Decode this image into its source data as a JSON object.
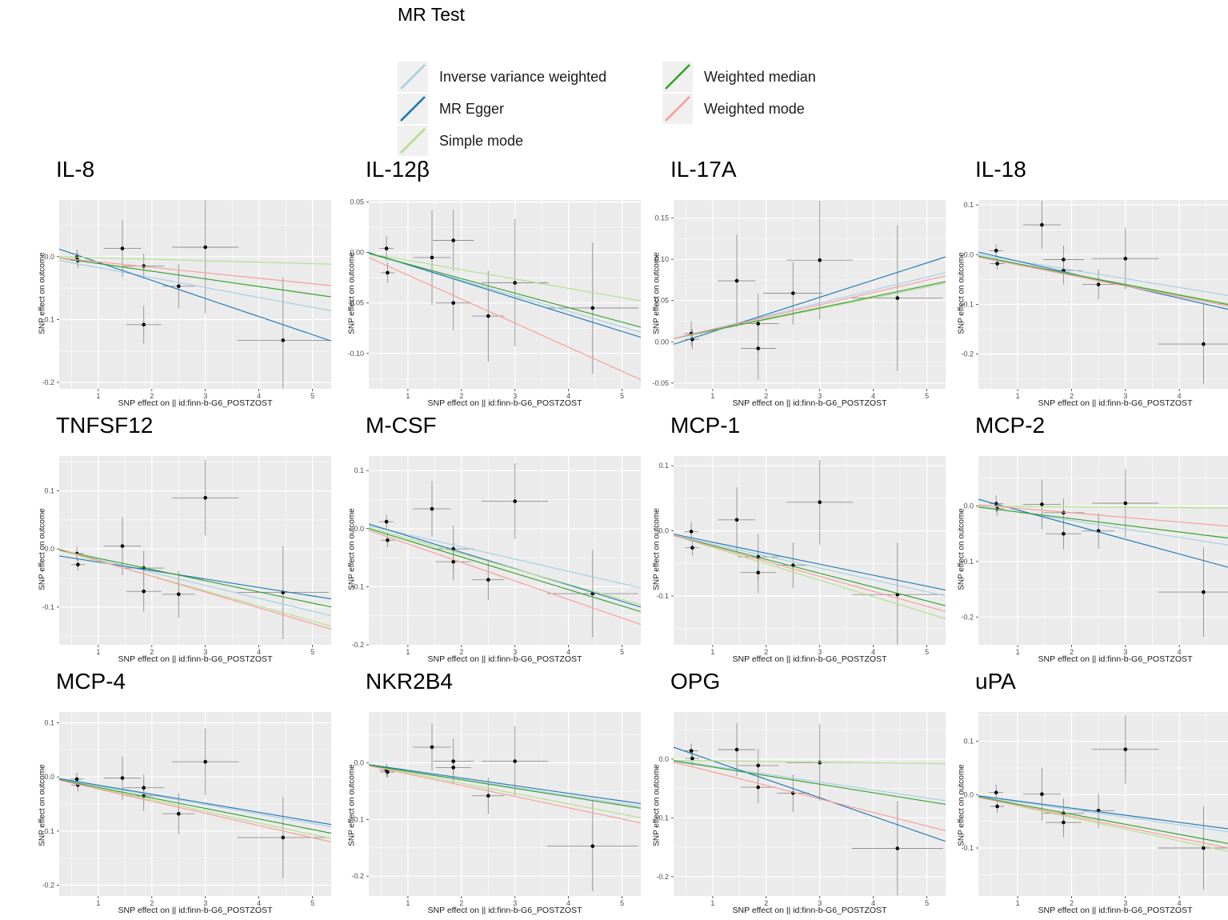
{
  "legend": {
    "title": "MR Test",
    "items": [
      {
        "label": "Inverse variance weighted",
        "color": "#A6CEE3",
        "col": 0,
        "row": 0
      },
      {
        "label": "MR Egger",
        "color": "#1F78B4",
        "col": 0,
        "row": 1
      },
      {
        "label": "Simple mode",
        "color": "#B2DF8A",
        "col": 0,
        "row": 2
      },
      {
        "label": "Weighted median",
        "color": "#33A02C",
        "col": 1,
        "row": 0
      },
      {
        "label": "Weighted mode",
        "color": "#FB9A99",
        "col": 1,
        "row": 1
      }
    ]
  },
  "methods": [
    {
      "id": "ivw",
      "label": "Inverse variance weighted",
      "color": "#A6CEE3"
    },
    {
      "id": "egger",
      "label": "MR Egger",
      "color": "#1F78B4"
    },
    {
      "id": "simple",
      "label": "Simple mode",
      "color": "#B2DF8A"
    },
    {
      "id": "median",
      "label": "Weighted median",
      "color": "#33A02C"
    },
    {
      "id": "mode",
      "label": "Weighted mode",
      "color": "#FB9A99"
    }
  ],
  "style": {
    "panel_bg": "#EBEBEB",
    "grid_major": "#FFFFFF",
    "grid_minor": "#F6F6F6",
    "point_color": "#000000",
    "errorbar_color": "#8F8F8F"
  },
  "axes": {
    "xlabel": "SNP effect on || id:finn-b-G6_POSTZOST",
    "ylabel": "SNP effect on outcome",
    "xticks": [
      1,
      2,
      3,
      4,
      5
    ],
    "xlim": [
      0.27,
      5.35
    ]
  },
  "chart_data": [
    {
      "type": "scatter",
      "title": "IL-8",
      "ylim": [
        -0.21,
        0.09
      ],
      "yticks": [
        [
          0.0,
          "0.0"
        ],
        [
          -0.1,
          "-0.1"
        ],
        [
          -0.2,
          "-0.2"
        ]
      ],
      "points": [
        [
          0.6,
          -0.001,
          0.13,
          0.012
        ],
        [
          0.62,
          -0.006,
          0.13,
          0.012
        ],
        [
          1.45,
          0.013,
          0.35,
          0.045
        ],
        [
          1.85,
          -0.015,
          0.38,
          0.02
        ],
        [
          1.85,
          -0.108,
          0.33,
          0.03
        ],
        [
          2.5,
          -0.047,
          0.3,
          0.035
        ],
        [
          3.0,
          0.015,
          0.62,
          0.105
        ],
        [
          4.45,
          -0.133,
          0.85,
          0.1
        ]
      ],
      "lines": {
        "ivw": [
          -0.006,
          -0.086
        ],
        "egger": [
          0.012,
          -0.134
        ],
        "simple": [
          0.0,
          -0.012
        ],
        "median": [
          -0.002,
          -0.064
        ],
        "mode": [
          -0.002,
          -0.046
        ]
      }
    },
    {
      "type": "scatter",
      "title": "IL-12β",
      "ylim": [
        -0.135,
        0.052
      ],
      "yticks": [
        [
          0.05,
          "0.05"
        ],
        [
          0.0,
          "0.00"
        ],
        [
          -0.05,
          "-0.05"
        ],
        [
          -0.1,
          "-0.10"
        ]
      ],
      "points": [
        [
          0.6,
          0.004,
          0.13,
          0.012
        ],
        [
          0.62,
          -0.02,
          0.13,
          0.01
        ],
        [
          1.45,
          -0.005,
          0.35,
          0.047
        ],
        [
          1.85,
          0.012,
          0.38,
          0.03
        ],
        [
          1.85,
          -0.05,
          0.33,
          0.027
        ],
        [
          2.5,
          -0.063,
          0.3,
          0.045
        ],
        [
          3.0,
          -0.03,
          0.62,
          0.063
        ],
        [
          4.45,
          -0.055,
          0.85,
          0.065
        ]
      ],
      "lines": {
        "ivw": [
          -0.001,
          -0.079
        ],
        "egger": [
          0.0,
          -0.084
        ],
        "simple": [
          -0.001,
          -0.048
        ],
        "median": [
          -0.001,
          -0.074
        ],
        "mode": [
          -0.005,
          -0.126
        ]
      }
    },
    {
      "type": "scatter",
      "title": "IL-17A",
      "ylim": [
        -0.057,
        0.172
      ],
      "yticks": [
        [
          0.15,
          "0.15"
        ],
        [
          0.1,
          "0.10"
        ],
        [
          0.05,
          "0.05"
        ],
        [
          0.0,
          "0.00"
        ],
        [
          -0.05,
          "-0.05"
        ]
      ],
      "points": [
        [
          0.6,
          0.01,
          0.13,
          0.015
        ],
        [
          0.62,
          0.003,
          0.13,
          0.012
        ],
        [
          1.45,
          0.074,
          0.35,
          0.056
        ],
        [
          1.85,
          0.022,
          0.38,
          0.036
        ],
        [
          1.85,
          -0.008,
          0.33,
          0.038
        ],
        [
          2.5,
          0.059,
          0.55,
          0.038
        ],
        [
          3.0,
          0.099,
          0.62,
          0.072
        ],
        [
          4.45,
          0.053,
          0.85,
          0.088
        ]
      ],
      "lines": {
        "ivw": [
          0.004,
          0.084
        ],
        "egger": [
          -0.003,
          0.103
        ],
        "simple": [
          0.004,
          0.071
        ],
        "median": [
          0.004,
          0.073
        ],
        "mode": [
          0.004,
          0.08
        ]
      }
    },
    {
      "type": "scatter",
      "title": "IL-18",
      "ylim": [
        -0.27,
        0.11
      ],
      "yticks": [
        [
          0.1,
          "0.1"
        ],
        [
          0.0,
          "0.0"
        ],
        [
          -0.1,
          "-0.1"
        ],
        [
          -0.2,
          "-0.2"
        ]
      ],
      "points": [
        [
          0.6,
          0.008,
          0.13,
          0.013
        ],
        [
          0.62,
          -0.018,
          0.13,
          0.012
        ],
        [
          1.45,
          0.06,
          0.35,
          0.048
        ],
        [
          1.85,
          -0.01,
          0.38,
          0.028
        ],
        [
          1.85,
          -0.032,
          0.33,
          0.028
        ],
        [
          2.5,
          -0.06,
          0.3,
          0.03
        ],
        [
          3.0,
          -0.008,
          0.62,
          0.062
        ],
        [
          4.45,
          -0.18,
          0.85,
          0.08
        ]
      ],
      "lines": {
        "ivw": [
          0.0,
          -0.09
        ],
        "egger": [
          0.005,
          -0.121
        ],
        "simple": [
          -0.003,
          -0.108
        ],
        "median": [
          -0.003,
          -0.11
        ],
        "mode": [
          -0.005,
          -0.113
        ]
      }
    },
    {
      "type": "scatter",
      "title": "TNFSF12",
      "ylim": [
        -0.165,
        0.16
      ],
      "yticks": [
        [
          0.1,
          "0.1"
        ],
        [
          0.0,
          "0.0"
        ],
        [
          -0.1,
          "-0.1"
        ]
      ],
      "points": [
        [
          0.6,
          -0.008,
          0.13,
          0.012
        ],
        [
          0.62,
          -0.027,
          0.13,
          0.01
        ],
        [
          1.45,
          0.005,
          0.35,
          0.05
        ],
        [
          1.85,
          -0.033,
          0.38,
          0.03
        ],
        [
          1.85,
          -0.073,
          0.33,
          0.035
        ],
        [
          2.5,
          -0.078,
          0.3,
          0.04
        ],
        [
          3.0,
          0.088,
          0.62,
          0.065
        ],
        [
          4.45,
          -0.075,
          0.85,
          0.08
        ]
      ],
      "lines": {
        "ivw": [
          -0.002,
          -0.115
        ],
        "egger": [
          -0.012,
          -0.086
        ],
        "simple": [
          -0.002,
          -0.133
        ],
        "median": [
          -0.002,
          -0.1
        ],
        "mode": [
          0.0,
          -0.138
        ]
      }
    },
    {
      "type": "scatter",
      "title": "M-CSF",
      "ylim": [
        -0.2,
        0.125
      ],
      "yticks": [
        [
          0.1,
          "0.1"
        ],
        [
          0.0,
          "0.0"
        ],
        [
          -0.1,
          "-0.1"
        ],
        [
          -0.2,
          "-0.2"
        ]
      ],
      "points": [
        [
          0.6,
          0.012,
          0.13,
          0.012
        ],
        [
          0.62,
          -0.02,
          0.13,
          0.012
        ],
        [
          1.45,
          0.034,
          0.35,
          0.048
        ],
        [
          1.85,
          -0.035,
          0.38,
          0.04
        ],
        [
          1.85,
          -0.057,
          0.33,
          0.032
        ],
        [
          2.5,
          -0.088,
          0.3,
          0.035
        ],
        [
          3.0,
          0.047,
          0.62,
          0.065
        ],
        [
          4.45,
          -0.112,
          0.85,
          0.075
        ]
      ],
      "lines": {
        "ivw": [
          0.005,
          -0.102
        ],
        "egger": [
          0.008,
          -0.135
        ],
        "simple": [
          0.002,
          -0.131
        ],
        "median": [
          0.0,
          -0.143
        ],
        "mode": [
          -0.003,
          -0.165
        ]
      }
    },
    {
      "type": "scatter",
      "title": "MCP-1",
      "ylim": [
        -0.175,
        0.115
      ],
      "yticks": [
        [
          0.1,
          "0.1"
        ],
        [
          0.0,
          "0.0"
        ],
        [
          -0.1,
          "-0.1"
        ]
      ],
      "points": [
        [
          0.6,
          -0.001,
          0.13,
          0.015
        ],
        [
          0.62,
          -0.026,
          0.13,
          0.012
        ],
        [
          1.45,
          0.017,
          0.35,
          0.05
        ],
        [
          1.85,
          -0.04,
          0.38,
          0.035
        ],
        [
          1.85,
          -0.064,
          0.33,
          0.032
        ],
        [
          2.5,
          -0.053,
          0.3,
          0.035
        ],
        [
          3.0,
          0.044,
          0.62,
          0.065
        ],
        [
          4.45,
          -0.098,
          0.85,
          0.08
        ]
      ],
      "lines": {
        "ivw": [
          -0.007,
          -0.1
        ],
        "egger": [
          -0.005,
          -0.091
        ],
        "simple": [
          -0.007,
          -0.135
        ],
        "median": [
          -0.007,
          -0.115
        ],
        "mode": [
          -0.007,
          -0.124
        ]
      }
    },
    {
      "type": "scatter",
      "title": "MCP-2",
      "ylim": [
        -0.25,
        0.09
      ],
      "yticks": [
        [
          0.0,
          "0.0"
        ],
        [
          -0.1,
          "-0.1"
        ],
        [
          -0.2,
          "-0.2"
        ]
      ],
      "points": [
        [
          0.6,
          0.004,
          0.13,
          0.015
        ],
        [
          0.62,
          -0.005,
          0.13,
          0.012
        ],
        [
          1.45,
          0.003,
          0.35,
          0.045
        ],
        [
          1.85,
          -0.012,
          0.38,
          0.025
        ],
        [
          1.85,
          -0.05,
          0.33,
          0.028
        ],
        [
          2.5,
          -0.045,
          0.3,
          0.032
        ],
        [
          3.0,
          0.005,
          0.62,
          0.062
        ],
        [
          4.45,
          -0.155,
          0.85,
          0.08
        ]
      ],
      "lines": {
        "ivw": [
          0.0,
          -0.077
        ],
        "egger": [
          0.012,
          -0.122
        ],
        "simple": [
          0.0,
          -0.004
        ],
        "median": [
          -0.002,
          -0.063
        ],
        "mode": [
          0.002,
          -0.04
        ]
      }
    },
    {
      "type": "scatter",
      "title": "MCP-4",
      "ylim": [
        -0.22,
        0.12
      ],
      "yticks": [
        [
          0.1,
          "0.1"
        ],
        [
          0.0,
          "0.0"
        ],
        [
          -0.1,
          "-0.1"
        ],
        [
          -0.2,
          "-0.2"
        ]
      ],
      "points": [
        [
          0.6,
          -0.004,
          0.13,
          0.012
        ],
        [
          0.62,
          -0.015,
          0.13,
          0.012
        ],
        [
          1.45,
          -0.002,
          0.35,
          0.04
        ],
        [
          1.85,
          -0.02,
          0.38,
          0.025
        ],
        [
          1.85,
          -0.035,
          0.33,
          0.028
        ],
        [
          2.5,
          -0.068,
          0.3,
          0.038
        ],
        [
          3.0,
          0.028,
          0.62,
          0.062
        ],
        [
          4.45,
          -0.112,
          0.85,
          0.075
        ]
      ],
      "lines": {
        "ivw": [
          -0.004,
          -0.092
        ],
        "egger": [
          -0.003,
          -0.088
        ],
        "simple": [
          -0.005,
          -0.114
        ],
        "median": [
          -0.005,
          -0.104
        ],
        "mode": [
          -0.006,
          -0.12
        ]
      }
    },
    {
      "type": "scatter",
      "title": "NKR2B4",
      "ylim": [
        -0.235,
        0.09
      ],
      "yticks": [
        [
          0.0,
          "0.0"
        ],
        [
          -0.1,
          "-0.1"
        ],
        [
          -0.2,
          "-0.2"
        ]
      ],
      "points": [
        [
          0.6,
          -0.013,
          0.13,
          0.012
        ],
        [
          0.62,
          -0.016,
          0.13,
          0.01
        ],
        [
          1.45,
          0.028,
          0.35,
          0.042
        ],
        [
          1.85,
          0.003,
          0.38,
          0.04
        ],
        [
          1.85,
          -0.008,
          0.33,
          0.012
        ],
        [
          2.5,
          -0.058,
          0.3,
          0.032
        ],
        [
          3.0,
          0.003,
          0.62,
          0.062
        ],
        [
          4.45,
          -0.147,
          0.85,
          0.08
        ]
      ],
      "lines": {
        "ivw": [
          -0.004,
          -0.077
        ],
        "egger": [
          -0.003,
          -0.072
        ],
        "simple": [
          -0.004,
          -0.097
        ],
        "median": [
          -0.004,
          -0.08
        ],
        "mode": [
          -0.005,
          -0.106
        ]
      }
    },
    {
      "type": "scatter",
      "title": "OPG",
      "ylim": [
        -0.233,
        0.08
      ],
      "yticks": [
        [
          0.0,
          "0.0"
        ],
        [
          -0.1,
          "-0.1"
        ],
        [
          -0.2,
          "-0.2"
        ]
      ],
      "points": [
        [
          0.6,
          0.014,
          0.13,
          0.012
        ],
        [
          0.62,
          0.001,
          0.13,
          0.012
        ],
        [
          1.45,
          0.016,
          0.35,
          0.045
        ],
        [
          1.85,
          -0.011,
          0.38,
          0.028
        ],
        [
          1.85,
          -0.048,
          0.33,
          0.028
        ],
        [
          2.5,
          -0.058,
          0.3,
          0.032
        ],
        [
          3.0,
          -0.006,
          0.62,
          0.065
        ],
        [
          4.45,
          -0.152,
          0.85,
          0.08
        ]
      ],
      "lines": {
        "ivw": [
          -0.002,
          -0.071
        ],
        "egger": [
          0.02,
          -0.14
        ],
        "simple": [
          -0.002,
          -0.008
        ],
        "median": [
          -0.003,
          -0.077
        ],
        "mode": [
          -0.005,
          -0.122
        ]
      }
    },
    {
      "type": "scatter",
      "title": "uPA",
      "ylim": [
        -0.19,
        0.155
      ],
      "yticks": [
        [
          0.1,
          "0.1"
        ],
        [
          0.0,
          "0.0"
        ],
        [
          -0.1,
          "-0.1"
        ]
      ],
      "points": [
        [
          0.6,
          0.004,
          0.13,
          0.015
        ],
        [
          0.62,
          -0.022,
          0.13,
          0.012
        ],
        [
          1.45,
          0.001,
          0.35,
          0.05
        ],
        [
          1.85,
          -0.035,
          0.38,
          0.028
        ],
        [
          1.85,
          -0.052,
          0.33,
          0.028
        ],
        [
          2.5,
          -0.03,
          0.3,
          0.032
        ],
        [
          3.0,
          0.085,
          0.62,
          0.065
        ],
        [
          4.45,
          -0.1,
          0.85,
          0.078
        ]
      ],
      "lines": {
        "ivw": [
          -0.003,
          -0.076
        ],
        "egger": [
          -0.002,
          -0.07
        ],
        "simple": [
          -0.005,
          -0.116
        ],
        "median": [
          -0.004,
          -0.1
        ],
        "mode": [
          -0.005,
          -0.109
        ]
      }
    }
  ]
}
